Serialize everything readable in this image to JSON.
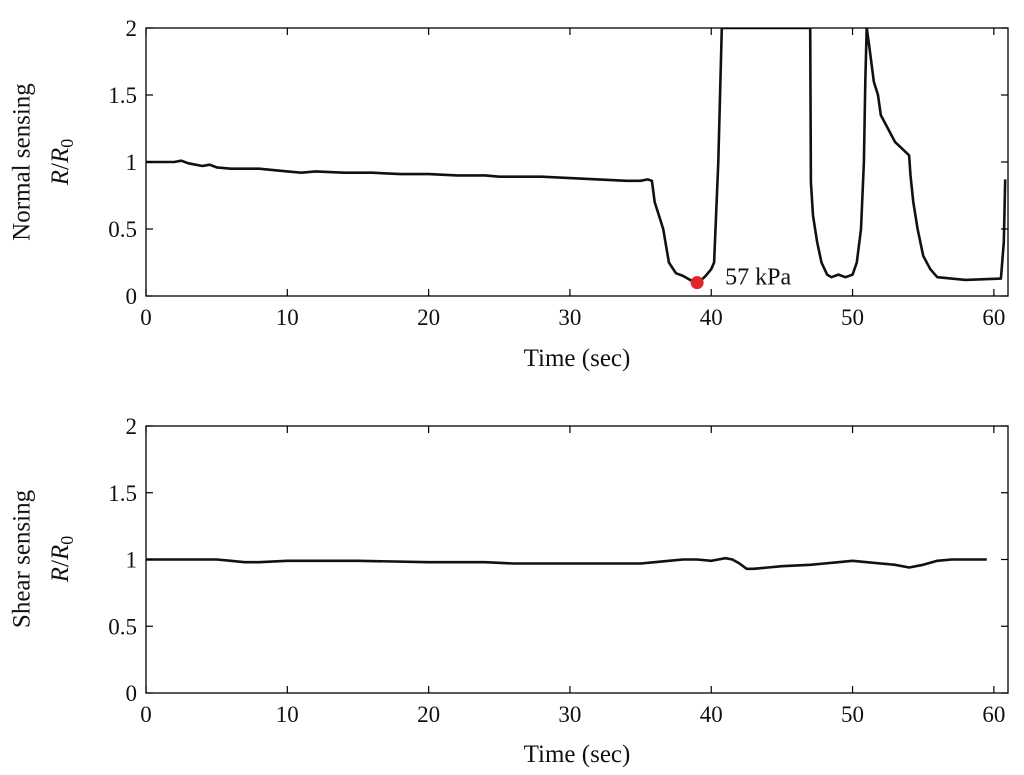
{
  "chart_data": [
    {
      "type": "line",
      "ylabel": {
        "line1": "Normal sensing",
        "ratio_R": "R",
        "ratio_sub": "0"
      },
      "xlabel": "Time (sec)",
      "xlim": [
        0,
        61
      ],
      "ylim": [
        0,
        2
      ],
      "xticks": [
        0,
        10,
        20,
        30,
        40,
        50,
        60
      ],
      "yticks": [
        0,
        0.5,
        1,
        1.5,
        2
      ],
      "grid": false,
      "series": [
        {
          "x": [
            0,
            2,
            2.5,
            3,
            4,
            4.5,
            5,
            6,
            8,
            10,
            11,
            12,
            14,
            16,
            18,
            20,
            22,
            24,
            25,
            28,
            30,
            32,
            34,
            35,
            35.5,
            35.8,
            36,
            36.3,
            36.6,
            37,
            37.5,
            38,
            38.5,
            39,
            39.3,
            39.6,
            40,
            40.2,
            40.3,
            40.5,
            40.7,
            40.75,
            47.0,
            47.05,
            47.2,
            47.5,
            47.8,
            48.2,
            48.5,
            49,
            49.5,
            50,
            50.3,
            50.6,
            50.8,
            50.9,
            51.0,
            51.2,
            51.5,
            51.8,
            52,
            52.5,
            53,
            53.5,
            54,
            54.1,
            54.3,
            54.6,
            55,
            55.5,
            56,
            58,
            60.5,
            60.7,
            60.8
          ],
          "y": [
            1.0,
            1.0,
            1.01,
            0.99,
            0.97,
            0.98,
            0.96,
            0.95,
            0.95,
            0.93,
            0.92,
            0.93,
            0.92,
            0.92,
            0.91,
            0.91,
            0.9,
            0.9,
            0.89,
            0.89,
            0.88,
            0.87,
            0.86,
            0.86,
            0.87,
            0.86,
            0.7,
            0.6,
            0.5,
            0.25,
            0.17,
            0.15,
            0.12,
            0.1,
            0.12,
            0.15,
            0.2,
            0.25,
            0.5,
            1.0,
            1.8,
            2.0,
            2.0,
            0.85,
            0.6,
            0.4,
            0.25,
            0.16,
            0.14,
            0.16,
            0.14,
            0.16,
            0.25,
            0.5,
            1.0,
            1.6,
            2.0,
            1.85,
            1.6,
            1.5,
            1.35,
            1.25,
            1.15,
            1.1,
            1.05,
            0.9,
            0.7,
            0.5,
            0.3,
            0.2,
            0.14,
            0.12,
            0.13,
            0.4,
            0.87
          ]
        }
      ],
      "annotation": {
        "x": 39.0,
        "y": 0.1,
        "text": "57 kPa",
        "marker_color": "#e0242a"
      },
      "line_color": "#111111"
    },
    {
      "type": "line",
      "ylabel": {
        "line1": "Shear sensing",
        "ratio_R": "R",
        "ratio_sub": "0"
      },
      "xlabel": "Time (sec)",
      "xlim": [
        0,
        61
      ],
      "ylim": [
        0,
        2
      ],
      "xticks": [
        0,
        10,
        20,
        30,
        40,
        50,
        60
      ],
      "yticks": [
        0,
        0.5,
        1,
        1.5,
        2
      ],
      "grid": false,
      "series": [
        {
          "x": [
            0,
            3,
            5,
            6,
            7,
            8,
            10,
            15,
            20,
            24,
            26,
            28,
            32,
            35,
            36,
            37,
            38,
            39,
            40,
            40.5,
            41,
            41.5,
            42,
            42.5,
            43,
            44,
            45,
            47,
            48,
            49,
            50,
            51,
            52,
            53,
            54,
            55,
            56,
            57,
            58,
            59.5
          ],
          "y": [
            1.0,
            1.0,
            1.0,
            0.99,
            0.98,
            0.98,
            0.99,
            0.99,
            0.98,
            0.98,
            0.97,
            0.97,
            0.97,
            0.97,
            0.98,
            0.99,
            1.0,
            1.0,
            0.99,
            1.0,
            1.01,
            1.0,
            0.97,
            0.93,
            0.93,
            0.94,
            0.95,
            0.96,
            0.97,
            0.98,
            0.99,
            0.98,
            0.97,
            0.96,
            0.94,
            0.96,
            0.99,
            1.0,
            1.0,
            1.0
          ]
        }
      ],
      "line_color": "#111111"
    }
  ]
}
